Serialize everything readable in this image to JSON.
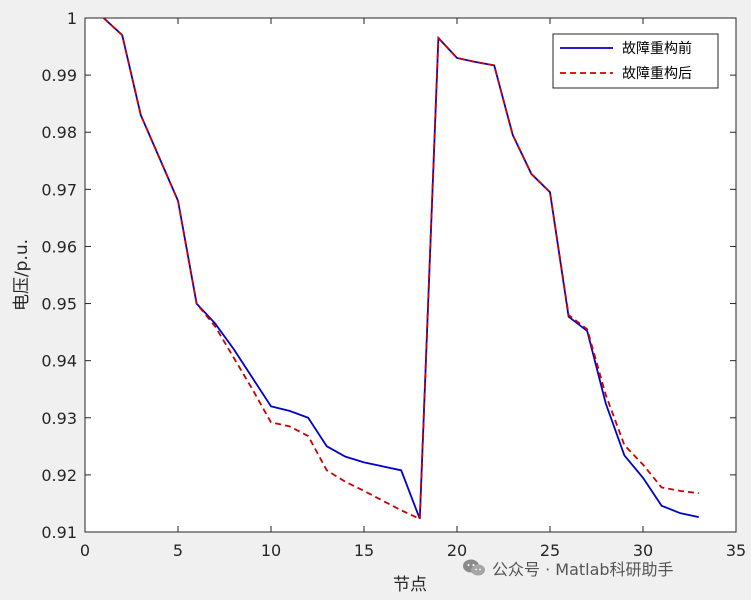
{
  "chart_data": {
    "type": "line",
    "xlabel": "节点",
    "ylabel": "电压/p.u.",
    "xlim": [
      0,
      35
    ],
    "ylim": [
      0.91,
      1
    ],
    "xticks": [
      0,
      5,
      10,
      15,
      20,
      25,
      30,
      35
    ],
    "yticks": [
      0.91,
      0.92,
      0.93,
      0.94,
      0.95,
      0.96,
      0.97,
      0.98,
      0.99,
      1
    ],
    "ytick_labels": [
      "0.91",
      "0.92",
      "0.93",
      "0.94",
      "0.95",
      "0.96",
      "0.97",
      "0.98",
      "0.99",
      "1"
    ],
    "grid": false,
    "legend_position": "top-right",
    "x": [
      1,
      2,
      3,
      4,
      5,
      6,
      7,
      8,
      9,
      10,
      11,
      12,
      13,
      14,
      15,
      16,
      17,
      18,
      19,
      20,
      21,
      22,
      23,
      24,
      25,
      26,
      27,
      28,
      29,
      30,
      31,
      32,
      33
    ],
    "series": [
      {
        "name": "故障重构前",
        "color": "#0000cc",
        "style": "solid",
        "values": [
          1.0,
          0.997,
          0.983,
          0.9755,
          0.968,
          0.95,
          0.9465,
          0.942,
          0.937,
          0.932,
          0.9312,
          0.93,
          0.925,
          0.9232,
          0.9222,
          0.9215,
          0.9208,
          0.9123,
          0.9965,
          0.993,
          0.9923,
          0.9917,
          0.9795,
          0.9727,
          0.9695,
          0.9477,
          0.9452,
          0.9325,
          0.9234,
          0.9195,
          0.9146,
          0.9133,
          0.9126
        ]
      },
      {
        "name": "故障重构后",
        "color": "#cc0000",
        "style": "dashed",
        "values": [
          1.0,
          0.997,
          0.983,
          0.9755,
          0.968,
          0.95,
          0.946,
          0.9405,
          0.935,
          0.9292,
          0.9285,
          0.9268,
          0.9208,
          0.9188,
          0.9172,
          0.9155,
          0.9138,
          0.9123,
          0.9965,
          0.993,
          0.9923,
          0.9917,
          0.9795,
          0.9727,
          0.9695,
          0.948,
          0.9455,
          0.934,
          0.9252,
          0.9218,
          0.9178,
          0.9172,
          0.9168
        ]
      }
    ]
  },
  "watermark": {
    "text": "公众号 · Matlab科研助手",
    "icon": "wechat-icon"
  }
}
